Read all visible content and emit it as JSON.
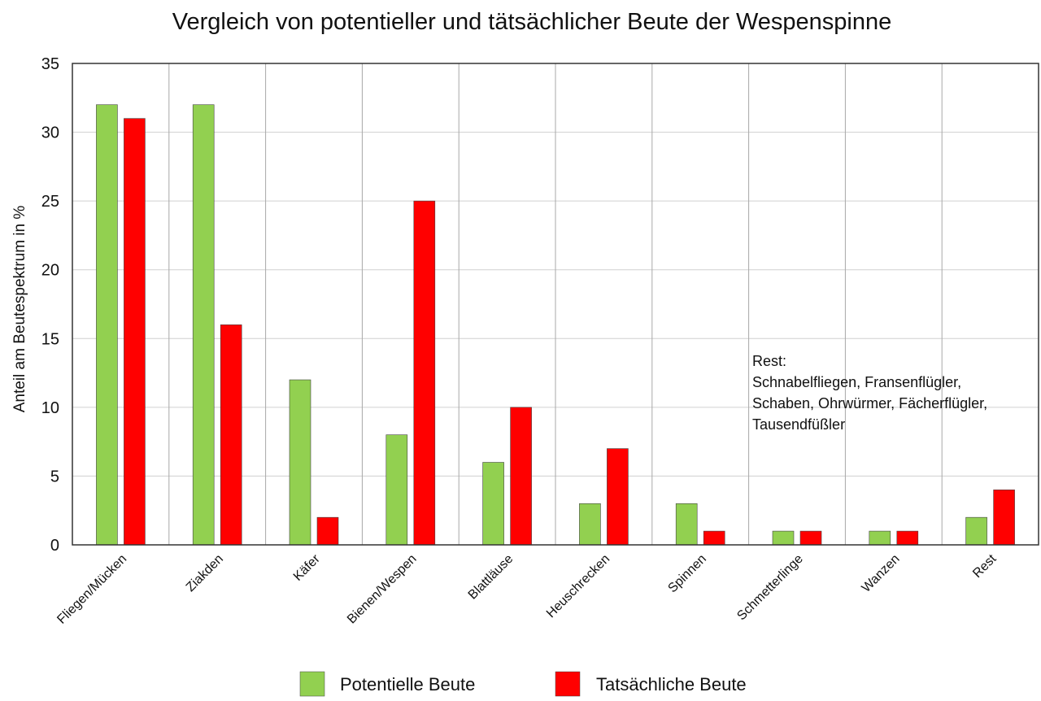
{
  "chart_data": {
    "type": "bar",
    "title": "Vergleich von potentieller und tätsächlicher Beute der Wespenspinne",
    "xlabel": "",
    "ylabel": "Anteil am Beutespektrum in %",
    "ylim": [
      0,
      35
    ],
    "yticks": [
      "0",
      "5",
      "10",
      "15",
      "20",
      "25",
      "30",
      "35"
    ],
    "grid": true,
    "legend_position": "bottom",
    "categories": [
      "Fliegen/Mücken",
      "Ziakden",
      "Käfer",
      "Bienen/Wespen",
      "Blattläuse",
      "Heuschrecken",
      "Spinnen",
      "Schmetterlinge",
      "Wanzen",
      "Rest"
    ],
    "series": [
      {
        "name": "Potentielle Beute",
        "color": "#92d050",
        "values": [
          32,
          32,
          12,
          8,
          6,
          3,
          3,
          1,
          1,
          2
        ]
      },
      {
        "name": "Tatsächliche Beute",
        "color": "#ff0000",
        "values": [
          31,
          16,
          2,
          25,
          10,
          7,
          1,
          1,
          1,
          4
        ]
      }
    ],
    "annotation": {
      "lines": [
        "Rest:",
        "Schnabelfliegen, Fransenflügler,",
        "Schaben, Ohrwürmer, Fächerflügler,",
        "Tausendfüßler"
      ]
    }
  }
}
